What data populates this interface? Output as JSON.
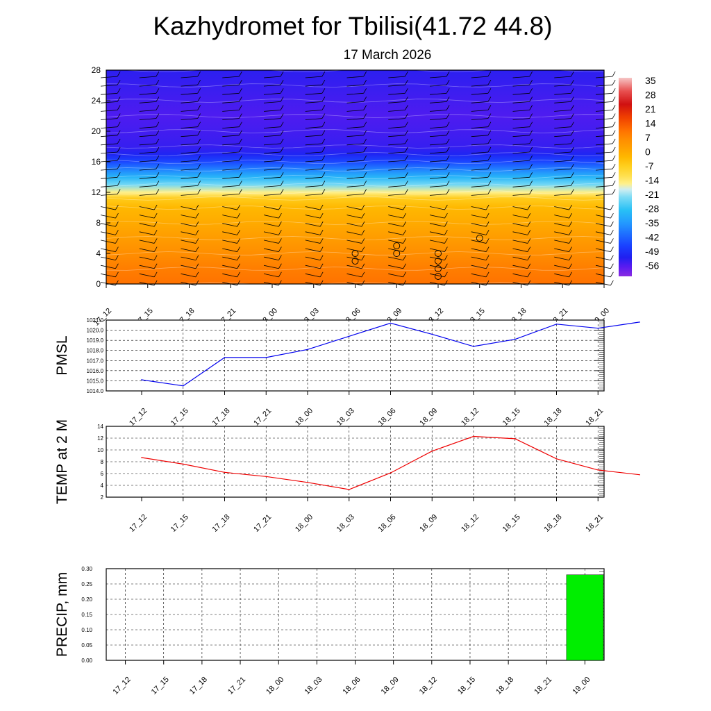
{
  "header": {
    "title": "Kazhydromet for Tbilisi(41.72 44.8)",
    "subtitle": "17 March 2026"
  },
  "colors": {
    "pmsl_line": "#0000ee",
    "temp_line": "#ee0000",
    "precip_bar": "#00ee00",
    "contour_line": "#ffffff",
    "wind_barb": "#000000"
  },
  "chart_data": [
    {
      "type": "heatmap",
      "id": "cross-section",
      "x": [
        "17_12",
        "17_15",
        "17_18",
        "17_21",
        "18_00",
        "18_03",
        "18_06",
        "18_09",
        "18_12",
        "18_15",
        "18_18",
        "18_21",
        "19_00"
      ],
      "yticks": [
        "28",
        "24",
        "20",
        "16",
        "12",
        "8",
        "4",
        "0"
      ],
      "ylim": [
        0,
        28
      ],
      "colorbar_labels": [
        "35",
        "28",
        "21",
        "14",
        "7",
        "0",
        "-7",
        "-14",
        "-21",
        "-28",
        "-35",
        "-42",
        "-49",
        "-56"
      ],
      "colorbar_range": [
        -63,
        42
      ],
      "temperature_profile": [
        {
          "level": 0,
          "value": 14
        },
        {
          "level": 2,
          "value": 12
        },
        {
          "level": 4,
          "value": 9
        },
        {
          "level": 6,
          "value": 6
        },
        {
          "level": 8,
          "value": 3
        },
        {
          "level": 10,
          "value": 0
        },
        {
          "level": 11.2,
          "value": -4
        },
        {
          "level": 12,
          "value": -14
        },
        {
          "level": 13,
          "value": -22
        },
        {
          "level": 14,
          "value": -30
        },
        {
          "level": 15,
          "value": -38
        },
        {
          "level": 16,
          "value": -46
        },
        {
          "level": 17,
          "value": -52
        },
        {
          "level": 18,
          "value": -55
        },
        {
          "level": 20,
          "value": -56
        },
        {
          "level": 22,
          "value": -57
        },
        {
          "level": 24,
          "value": -56
        },
        {
          "level": 26,
          "value": -55
        },
        {
          "level": 28,
          "value": -54
        }
      ],
      "precip_markers": [
        {
          "x": "18_06",
          "levels": [
            3,
            4
          ]
        },
        {
          "x": "18_09",
          "levels": [
            4,
            5
          ]
        },
        {
          "x": "18_12",
          "levels": [
            1,
            2,
            3,
            4
          ]
        },
        {
          "x": "18_15",
          "levels": [
            6
          ]
        }
      ]
    },
    {
      "type": "line",
      "id": "pmsl",
      "ylabel": "PMSL",
      "x": [
        "17_12",
        "17_15",
        "17_18",
        "17_21",
        "18_00",
        "18_03",
        "18_06",
        "18_09",
        "18_12",
        "18_15",
        "18_18",
        "18_21",
        "19_00"
      ],
      "series": [
        {
          "values": [
            1015.1,
            1014.5,
            1017.3,
            1017.3,
            1018.1,
            1019.4,
            1020.7,
            1019.6,
            1018.4,
            1019.1,
            1020.6,
            1020.2,
            1020.8
          ]
        }
      ],
      "yticks": [
        "1021.0",
        "1020.0",
        "1019.0",
        "1018.0",
        "1017.0",
        "1016.0",
        "1015.0",
        "1014.0"
      ],
      "ylim": [
        1014,
        1021
      ],
      "grid": true
    },
    {
      "type": "line",
      "id": "temp2m",
      "ylabel": "TEMP at 2 M",
      "x": [
        "17_12",
        "17_15",
        "17_18",
        "17_21",
        "18_00",
        "18_03",
        "18_06",
        "18_09",
        "18_12",
        "18_15",
        "18_18",
        "18_21",
        "19_00"
      ],
      "series": [
        {
          "values": [
            8.7,
            7.6,
            6.2,
            5.5,
            4.5,
            3.3,
            6.1,
            9.8,
            12.3,
            11.9,
            8.5,
            6.6,
            5.8
          ]
        }
      ],
      "yticks": [
        "14",
        "12",
        "10",
        "8",
        "6",
        "4",
        "2"
      ],
      "ylim": [
        2,
        14
      ],
      "grid": true
    },
    {
      "type": "bar",
      "id": "precip",
      "ylabel": "PRECIP, mm",
      "categories": [
        "17_12",
        "17_15",
        "17_18",
        "17_21",
        "18_00",
        "18_03",
        "18_06",
        "18_09",
        "18_12",
        "18_15",
        "18_18",
        "18_21",
        "19_00"
      ],
      "values": [
        0,
        0,
        0,
        0,
        0,
        0,
        0,
        0,
        0,
        0,
        0,
        0,
        0.28
      ],
      "yticks": [
        "0.30",
        "0.25",
        "0.20",
        "0.15",
        "0.10",
        "0.05",
        "0.00"
      ],
      "ylim": [
        0,
        0.3
      ],
      "grid": true
    }
  ]
}
